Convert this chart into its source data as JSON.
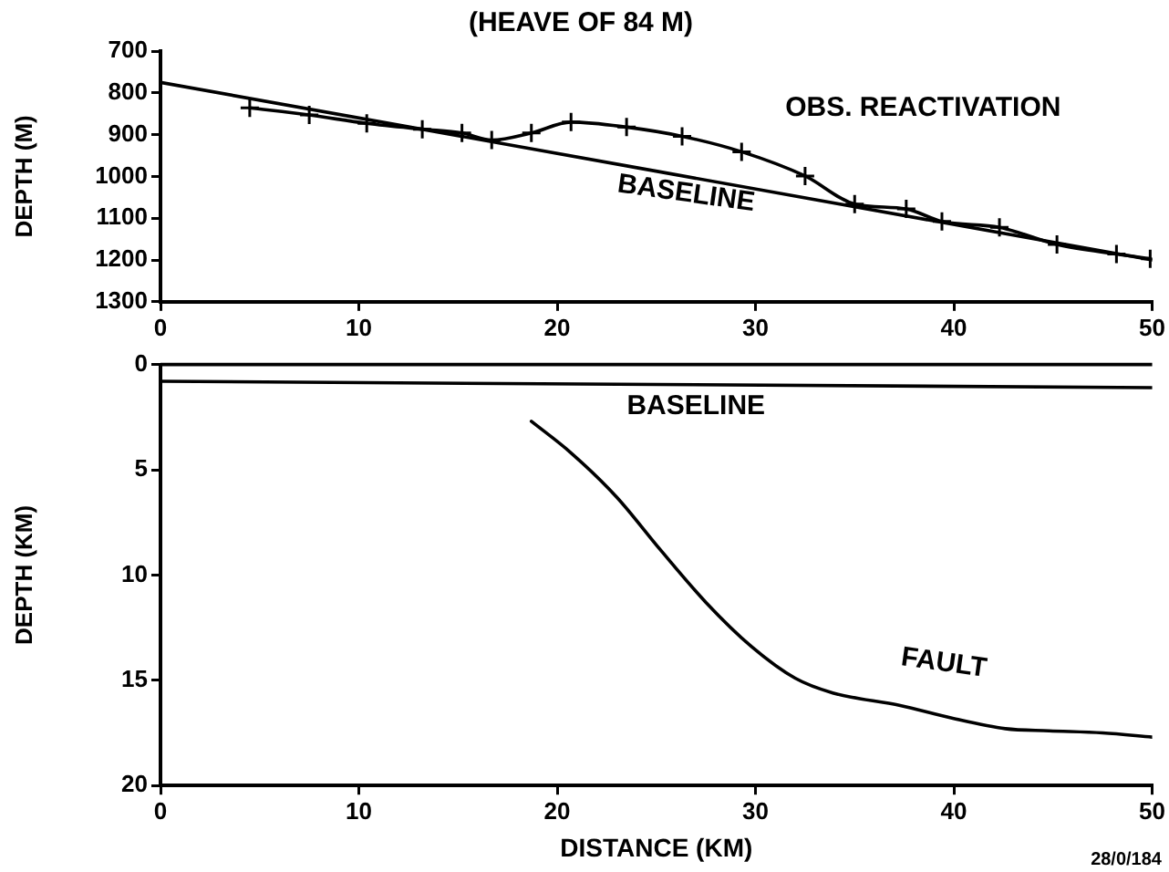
{
  "chart_data": [
    {
      "type": "line",
      "title": "(HEAVE OF 84 M)",
      "ylabel": "DEPTH (M)",
      "xlim": [
        0,
        50
      ],
      "xticks": [
        0,
        10,
        20,
        30,
        40,
        50
      ],
      "ylim": [
        1300,
        700
      ],
      "yticks": [
        700,
        800,
        900,
        1000,
        1100,
        1200,
        1300
      ],
      "grid": false,
      "legend": false,
      "series": [
        {
          "name": "OBS. REACTIVATION",
          "color": "#000000",
          "marker": "cross",
          "x": [
            4.5,
            7.5,
            10.4,
            13.2,
            15.2,
            16.7,
            18.7,
            20.7,
            23.5,
            26.3,
            29.3,
            32.5,
            35.0,
            37.6,
            39.4,
            42.3,
            45.2,
            48.2,
            49.9
          ],
          "values": [
            836,
            853,
            873,
            887,
            896,
            913,
            896,
            870,
            882,
            904,
            941,
            999,
            1066,
            1078,
            1108,
            1122,
            1163,
            1186,
            1197
          ]
        },
        {
          "name": "BASELINE",
          "color": "#000000",
          "marker": "none",
          "x": [
            0,
            50
          ],
          "values": [
            775,
            1200
          ]
        }
      ]
    },
    {
      "type": "line",
      "xlabel": "DISTANCE (KM)",
      "ylabel": "DEPTH (KM)",
      "xlim": [
        0,
        50
      ],
      "xticks": [
        0,
        10,
        20,
        30,
        40,
        50
      ],
      "ylim": [
        20,
        0
      ],
      "yticks": [
        0,
        5,
        10,
        15,
        20
      ],
      "grid": false,
      "legend": false,
      "marker": "none",
      "ref_lines": [
        {
          "axis": "y",
          "value": 0
        }
      ],
      "annotations": [
        "28/0/184"
      ],
      "series": [
        {
          "name": "BASELINE",
          "color": "#000000",
          "x": [
            0,
            50
          ],
          "values": [
            0.8,
            1.1
          ]
        },
        {
          "name": "FAULT",
          "color": "#000000",
          "x": [
            18.7,
            20.7,
            23.0,
            25.2,
            27.5,
            29.8,
            32.0,
            33.9,
            37.3,
            39.9,
            42.6,
            44.8,
            47.5,
            50
          ],
          "values": [
            2.7,
            4.2,
            6.3,
            8.8,
            11.3,
            13.4,
            14.9,
            15.6,
            16.2,
            16.8,
            17.3,
            17.4,
            17.5,
            17.7
          ]
        }
      ]
    }
  ]
}
